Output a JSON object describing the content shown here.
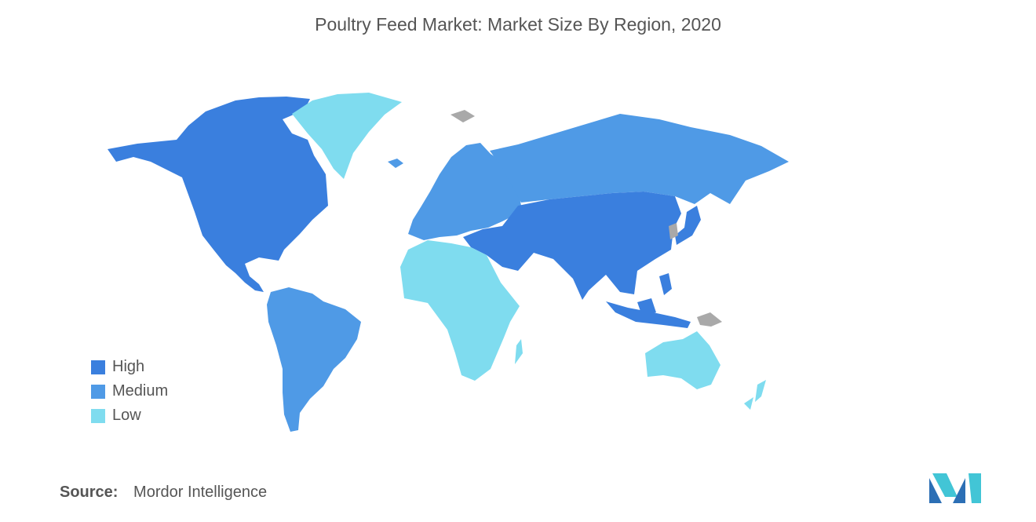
{
  "title": "Poultry Feed Market: Market Size By Region, 2020",
  "legend": [
    {
      "label": "High",
      "color": "#3a7fde"
    },
    {
      "label": "Medium",
      "color": "#4f9ae6"
    },
    {
      "label": "Low",
      "color": "#7fdcef"
    }
  ],
  "no_data_color": "#a9a9a9",
  "regions": [
    {
      "region": "North America",
      "level": "High"
    },
    {
      "region": "Asia-Pacific",
      "level": "High"
    },
    {
      "region": "Middle East",
      "level": "High"
    },
    {
      "region": "South America",
      "level": "Medium"
    },
    {
      "region": "Europe",
      "level": "Medium"
    },
    {
      "region": "Russia",
      "level": "Medium"
    },
    {
      "region": "Africa",
      "level": "Low"
    },
    {
      "region": "Australia",
      "level": "Low"
    },
    {
      "region": "Greenland",
      "level": "Low"
    }
  ],
  "source": {
    "label": "Source:",
    "value": "Mordor Intelligence"
  },
  "logo_icon": "mordor-intelligence-logo-icon"
}
